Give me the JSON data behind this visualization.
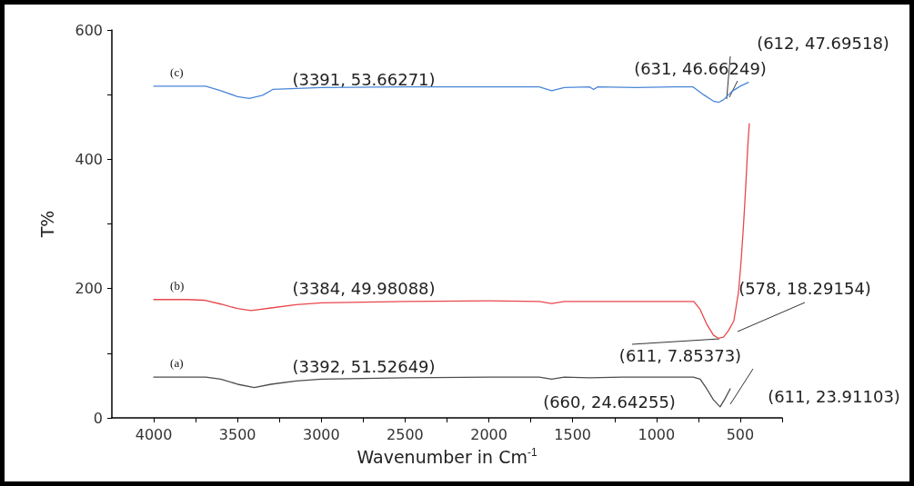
{
  "chart_data": {
    "type": "line",
    "xlabel": "Wavenumber in Cm$^{-1}$",
    "ylabel": "T%",
    "xlim": [
      4250,
      250
    ],
    "xticks": [
      4000,
      {
        "value": 3750,
        "label": null
      },
      3500,
      {
        "value": 3250,
        "label": null
      },
      3000,
      {
        "value": 2750,
        "label": null
      },
      2500,
      {
        "value": 2250,
        "label": null
      },
      2000,
      {
        "value": 1750,
        "label": null
      },
      1500,
      {
        "value": 1250,
        "label": null
      },
      1000,
      {
        "value": 750,
        "label": null
      },
      500,
      {
        "value": 250,
        "label": null
      }
    ],
    "ylim": [
      0,
      600
    ],
    "yticks": [
      0,
      {
        "value": 100,
        "label": null
      },
      200,
      {
        "value": 300,
        "label": null
      },
      400,
      {
        "value": 500,
        "label": null
      },
      600
    ],
    "grid": false,
    "legend": false,
    "marker": "none",
    "line_style": "solid",
    "series": [
      {
        "name": "(a)",
        "color": "#4d4d4d",
        "x": [
          4000,
          3800,
          3690,
          3600,
          3500,
          3400,
          3300,
          3150,
          3000,
          2500,
          2000,
          1700,
          1625,
          1550,
          1400,
          1200,
          900,
          780,
          739,
          700,
          660,
          620,
          590,
          560
        ],
        "values": [
          63,
          63,
          63,
          60,
          52,
          47,
          52,
          57,
          60,
          62,
          63,
          63,
          60,
          63,
          62,
          63,
          63,
          63,
          60,
          45,
          28,
          17,
          30,
          45
        ]
      },
      {
        "name": "(b)",
        "color": "#e8474c",
        "x": [
          4000,
          3800,
          3700,
          3600,
          3500,
          3420,
          3300,
          3150,
          3000,
          2500,
          2000,
          1700,
          1625,
          1550,
          1400,
          1200,
          900,
          777,
          740,
          700,
          660,
          630,
          600,
          570,
          538,
          510,
          495,
          480,
          467,
          455,
          446
        ],
        "values": [
          183,
          183,
          182,
          176,
          169,
          166,
          170,
          175,
          178,
          180,
          181,
          180,
          177,
          180,
          180,
          180,
          180,
          180,
          168,
          145,
          128,
          123,
          125,
          135,
          150,
          195,
          242,
          300,
          359,
          420,
          455
        ]
      },
      {
        "name": "(c)",
        "color": "#4a86d8",
        "x": [
          4000,
          3800,
          3690,
          3600,
          3500,
          3430,
          3350,
          3290,
          3000,
          2500,
          2000,
          1700,
          1625,
          1550,
          1400,
          1375,
          1350,
          1120,
          900,
          783,
          720,
          660,
          630,
          600,
          550,
          500,
          451
        ],
        "values": [
          513,
          513,
          513,
          506,
          497,
          494,
          499,
          508,
          511,
          512,
          512,
          512,
          506,
          511,
          512,
          508,
          512,
          511,
          512,
          512,
          500,
          490,
          488,
          492,
          505,
          513,
          519
        ]
      }
    ],
    "annotations": [
      "(3391, 53.66271)",
      "(631, 46.66249)",
      "(612, 47.69518)",
      "(3384, 49.98088)",
      "(578, 18.29154)",
      "(611, 7.85373)",
      "(3392, 51.52649)",
      "(660, 24.64255)",
      "(611, 23.91103)"
    ]
  }
}
